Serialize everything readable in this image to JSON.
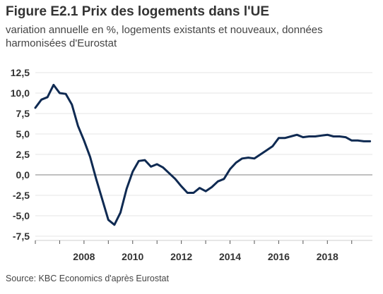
{
  "header": {
    "title": "Figure E2.1 Prix des logements dans l'UE",
    "subtitle": "variation annuelle en %, logements existants et nouveaux, données harmonisées d'Eurostat"
  },
  "footer": {
    "source": "Source: KBC Economics d'après Eurostat"
  },
  "colors": {
    "line": "#0f2a52",
    "zero_line": "#9a9a9a",
    "grid": "#e6e6e6",
    "text": "#333333"
  },
  "chart_data": {
    "type": "line",
    "title": "Figure E2.1 Prix des logements dans l'UE",
    "subtitle": "variation annuelle en %, logements existants et nouveaux, données harmonisées d'Eurostat",
    "xlabel": "",
    "ylabel": "",
    "xlim": [
      2006.0,
      2019.85
    ],
    "ylim": [
      -7.5,
      12.5
    ],
    "y_ticks": [
      12.5,
      10.0,
      7.5,
      5.0,
      2.5,
      0.0,
      -2.5,
      -5.0,
      -7.5
    ],
    "y_tick_labels": [
      "12,5",
      "10,0",
      "7,5",
      "5,0",
      "2,5",
      "0,0",
      "-2,5",
      "-5,0",
      "-7,5"
    ],
    "x_tick_labels": [
      {
        "x": 2008,
        "label": "2008"
      },
      {
        "x": 2010,
        "label": "2010"
      },
      {
        "x": 2012,
        "label": "2012"
      },
      {
        "x": 2014,
        "label": "2014"
      },
      {
        "x": 2016,
        "label": "2016"
      },
      {
        "x": 2018,
        "label": "2018"
      }
    ],
    "x_minor_ticks": [
      2006,
      2007,
      2008,
      2009,
      2010,
      2011,
      2012,
      2013,
      2014,
      2015,
      2016,
      2017,
      2018,
      2019
    ],
    "grid": true,
    "zero_line": true,
    "series": [
      {
        "x": [
          2006.0,
          2006.25,
          2006.5,
          2006.75,
          2007.0,
          2007.25,
          2007.5,
          2007.75,
          2008.0,
          2008.25,
          2008.5,
          2008.75,
          2009.0,
          2009.25,
          2009.5,
          2009.75,
          2010.0,
          2010.25,
          2010.5,
          2010.75,
          2011.0,
          2011.25,
          2011.5,
          2011.75,
          2012.0,
          2012.25,
          2012.5,
          2012.75,
          2013.0,
          2013.25,
          2013.5,
          2013.75,
          2014.0,
          2014.25,
          2014.5,
          2014.75,
          2015.0,
          2015.25,
          2015.5,
          2015.75,
          2016.0,
          2016.25,
          2016.5,
          2016.75,
          2017.0,
          2017.25,
          2017.5,
          2017.75,
          2018.0,
          2018.25,
          2018.5,
          2018.75,
          2019.0,
          2019.25,
          2019.5,
          2019.75
        ],
        "values": [
          8.2,
          9.2,
          9.5,
          11.0,
          10.0,
          9.9,
          8.6,
          6.0,
          4.2,
          2.2,
          -0.5,
          -3.0,
          -5.5,
          -6.1,
          -4.6,
          -1.7,
          0.4,
          1.7,
          1.8,
          1.0,
          1.3,
          0.9,
          0.2,
          -0.5,
          -1.4,
          -2.2,
          -2.2,
          -1.6,
          -2.0,
          -1.5,
          -0.8,
          -0.5,
          0.7,
          1.5,
          2.0,
          2.1,
          2.0,
          2.5,
          3.0,
          3.5,
          4.5,
          4.5,
          4.7,
          4.9,
          4.6,
          4.7,
          4.7,
          4.8,
          4.9,
          4.7,
          4.7,
          4.6,
          4.2,
          4.2,
          4.1,
          4.1
        ]
      }
    ]
  }
}
